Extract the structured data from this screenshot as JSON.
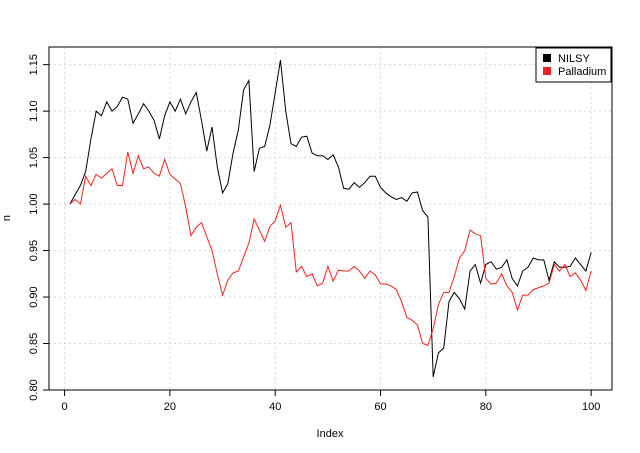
{
  "chart_data": {
    "type": "line",
    "x": [
      1,
      2,
      3,
      4,
      5,
      6,
      7,
      8,
      9,
      10,
      11,
      12,
      13,
      14,
      15,
      16,
      17,
      18,
      19,
      20,
      21,
      22,
      23,
      24,
      25,
      26,
      27,
      28,
      29,
      30,
      31,
      32,
      33,
      34,
      35,
      36,
      37,
      38,
      39,
      40,
      41,
      42,
      43,
      44,
      45,
      46,
      47,
      48,
      49,
      50,
      51,
      52,
      53,
      54,
      55,
      56,
      57,
      58,
      59,
      60,
      61,
      62,
      63,
      64,
      65,
      66,
      67,
      68,
      69,
      70,
      71,
      72,
      73,
      74,
      75,
      76,
      77,
      78,
      79,
      80,
      81,
      82,
      83,
      84,
      85,
      86,
      87,
      88,
      89,
      90,
      91,
      92,
      93,
      94,
      95,
      96,
      97,
      98,
      99,
      100
    ],
    "series": [
      {
        "name": "NILSY",
        "color": "#000000",
        "values": [
          1.0,
          1.01,
          1.02,
          1.035,
          1.07,
          1.1,
          1.095,
          1.11,
          1.1,
          1.105,
          1.115,
          1.113,
          1.087,
          1.097,
          1.108,
          1.1,
          1.09,
          1.07,
          1.095,
          1.11,
          1.1,
          1.113,
          1.097,
          1.11,
          1.12,
          1.09,
          1.057,
          1.083,
          1.04,
          1.012,
          1.022,
          1.055,
          1.08,
          1.123,
          1.133,
          1.035,
          1.06,
          1.062,
          1.085,
          1.12,
          1.155,
          1.1,
          1.065,
          1.062,
          1.072,
          1.073,
          1.055,
          1.052,
          1.052,
          1.048,
          1.053,
          1.04,
          1.017,
          1.016,
          1.023,
          1.018,
          1.023,
          1.03,
          1.03,
          1.018,
          1.012,
          1.008,
          1.005,
          1.007,
          1.003,
          1.012,
          1.013,
          0.993,
          0.986,
          0.814,
          0.84,
          0.845,
          0.895,
          0.905,
          0.898,
          0.887,
          0.928,
          0.935,
          0.915,
          0.935,
          0.938,
          0.93,
          0.932,
          0.94,
          0.92,
          0.912,
          0.928,
          0.932,
          0.942,
          0.94,
          0.94,
          0.918,
          0.938,
          0.932,
          0.932,
          0.933,
          0.942,
          0.935,
          0.928,
          0.948
        ]
      },
      {
        "name": "Palladium",
        "color": "#ee2222",
        "values": [
          1.0,
          1.005,
          1.0,
          1.03,
          1.02,
          1.032,
          1.028,
          1.033,
          1.038,
          1.02,
          1.02,
          1.056,
          1.033,
          1.052,
          1.038,
          1.04,
          1.033,
          1.03,
          1.048,
          1.032,
          1.027,
          1.022,
          0.997,
          0.966,
          0.975,
          0.98,
          0.965,
          0.95,
          0.925,
          0.902,
          0.918,
          0.926,
          0.928,
          0.943,
          0.958,
          0.984,
          0.972,
          0.96,
          0.976,
          0.982,
          0.999,
          0.975,
          0.98,
          0.927,
          0.933,
          0.922,
          0.925,
          0.912,
          0.915,
          0.933,
          0.917,
          0.929,
          0.928,
          0.928,
          0.933,
          0.928,
          0.92,
          0.928,
          0.924,
          0.914,
          0.914,
          0.912,
          0.908,
          0.895,
          0.878,
          0.875,
          0.87,
          0.85,
          0.848,
          0.866,
          0.892,
          0.905,
          0.905,
          0.922,
          0.942,
          0.95,
          0.972,
          0.968,
          0.966,
          0.92,
          0.914,
          0.915,
          0.925,
          0.912,
          0.905,
          0.886,
          0.902,
          0.902,
          0.908,
          0.91,
          0.912,
          0.915,
          0.935,
          0.928,
          0.935,
          0.922,
          0.926,
          0.918,
          0.907,
          0.928
        ]
      }
    ],
    "x_label": "Index",
    "y_label": "n",
    "xlim": [
      -2.96,
      103.96
    ],
    "xticks": [
      0,
      20,
      40,
      60,
      80,
      100
    ],
    "ylim": [
      0.8,
      1.169
    ],
    "yticks": [
      {
        "value": 0.8,
        "label": "0.80"
      },
      {
        "value": 0.85,
        "label": "0.85"
      },
      {
        "value": 0.9,
        "label": "0.90"
      },
      {
        "value": 0.95,
        "label": "0.95"
      },
      {
        "value": 1.0,
        "label": "1.00"
      },
      {
        "value": 1.05,
        "label": "1.05"
      },
      {
        "value": 1.1,
        "label": "1.10"
      },
      {
        "value": 1.15,
        "label": "1.15"
      }
    ],
    "grid": true,
    "legend": "top-right"
  }
}
